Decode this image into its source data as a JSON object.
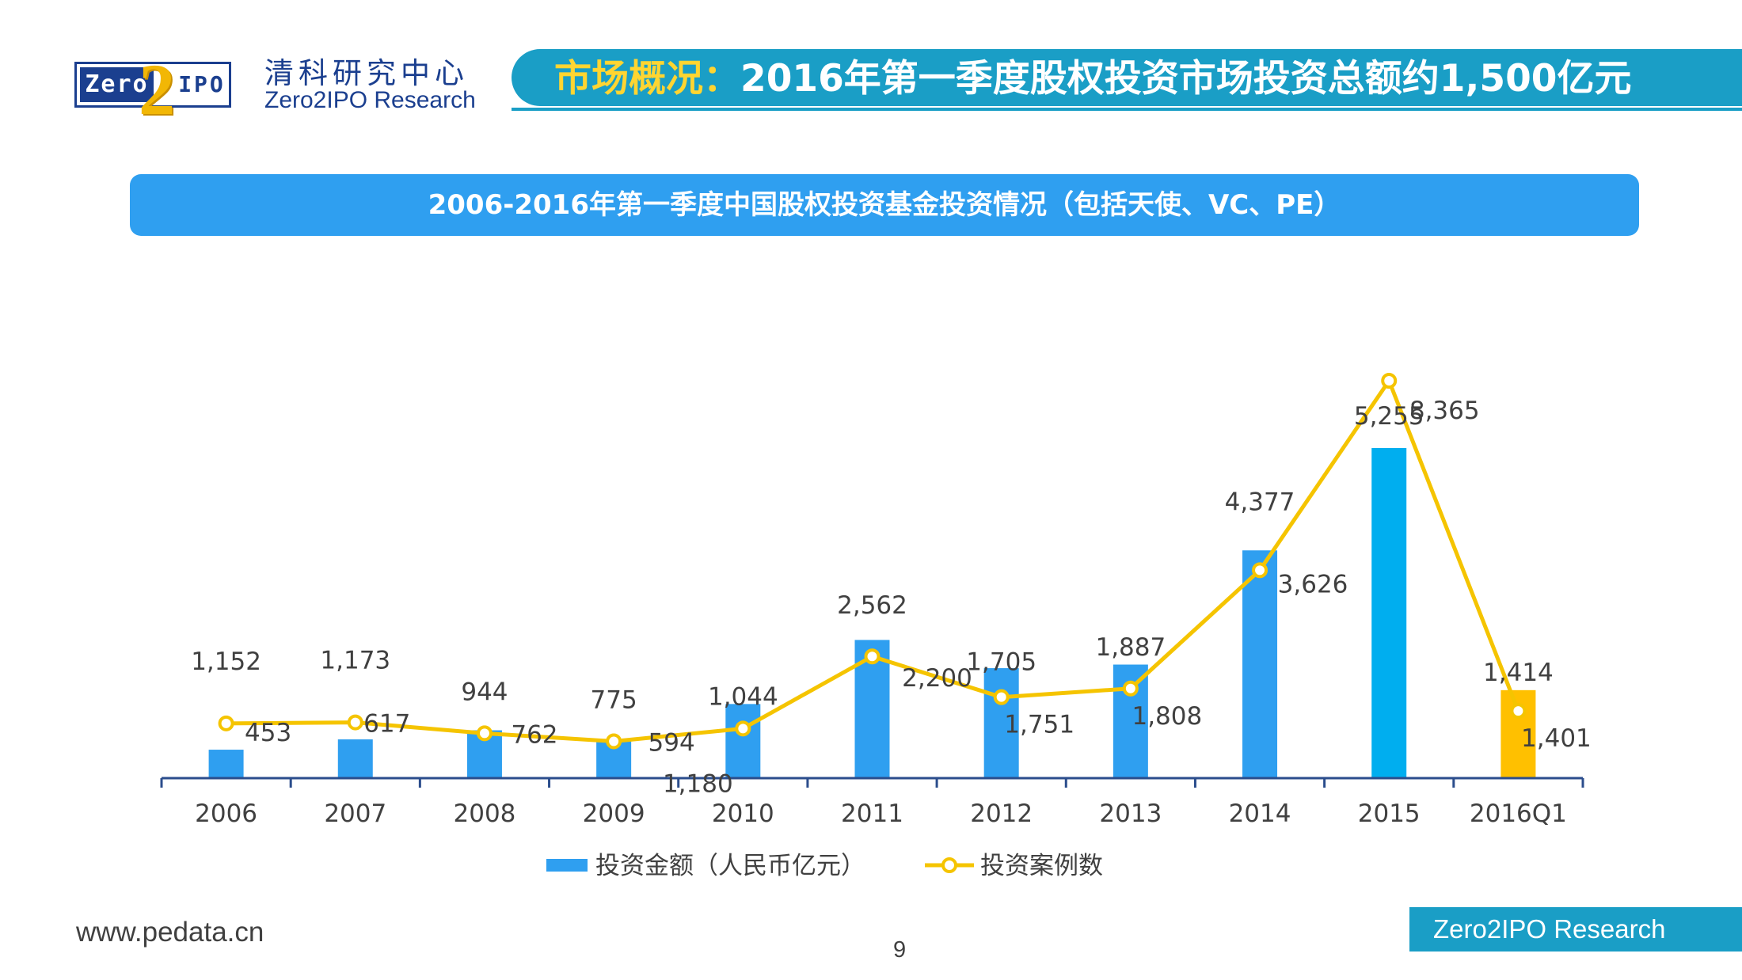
{
  "header": {
    "logo_left_text": "Zero",
    "logo_digit": "2",
    "logo_right_text": "IPO",
    "org_name_cn": "清科研究中心",
    "org_name_en": "Zero2IPO Research",
    "title_highlight": "市场概况：",
    "title_rest": "2016年第一季度股权投资市场投资总额约1,500亿元"
  },
  "subtitle": "2006-2016年第一季度中国股权投资基金投资情况（包括天使、VC、PE）",
  "footer": {
    "url": "www.pedata.cn",
    "page_number": "9",
    "brand": "Zero2IPO Research"
  },
  "colors": {
    "bar_blue": "#2f9ff0",
    "bar_2015": "#00aeef",
    "bar_highlight": "#ffc000",
    "line_yellow": "#f5c400",
    "axis": "#2b4d8c",
    "label": "#404040"
  },
  "chart_data": {
    "type": "bar",
    "categories": [
      "2006",
      "2007",
      "2008",
      "2009",
      "2010",
      "2011",
      "2012",
      "2013",
      "2014",
      "2015",
      "2016Q1"
    ],
    "series": [
      {
        "name": "投资金额（人民币亿元）",
        "kind": "bar",
        "values": [
          453,
          617,
          762,
          594,
          1180,
          2200,
          1751,
          1808,
          3626,
          5255,
          1401
        ],
        "labels": [
          "453",
          "617",
          "762",
          "594",
          "1,180",
          "2,200",
          "1,751",
          "1,808",
          "3,626",
          "5,255",
          "1,401"
        ]
      },
      {
        "name": "投资案例数",
        "kind": "line",
        "values": [
          1152,
          1173,
          944,
          775,
          1044,
          2562,
          1705,
          1887,
          4377,
          8365,
          1414
        ],
        "labels": [
          "1,152",
          "1,173",
          "944",
          "775",
          "1,044",
          "2,562",
          "1,705",
          "1,887",
          "4,377",
          "8,365",
          "1,414"
        ]
      }
    ],
    "legend": [
      "投资金额（人民币亿元）",
      "投资案例数"
    ],
    "legend_position": "bottom",
    "highlight_category": "2016Q1",
    "grid": false,
    "ylim_bar": [
      0,
      8000
    ],
    "ylim_line": [
      0,
      10000
    ]
  }
}
